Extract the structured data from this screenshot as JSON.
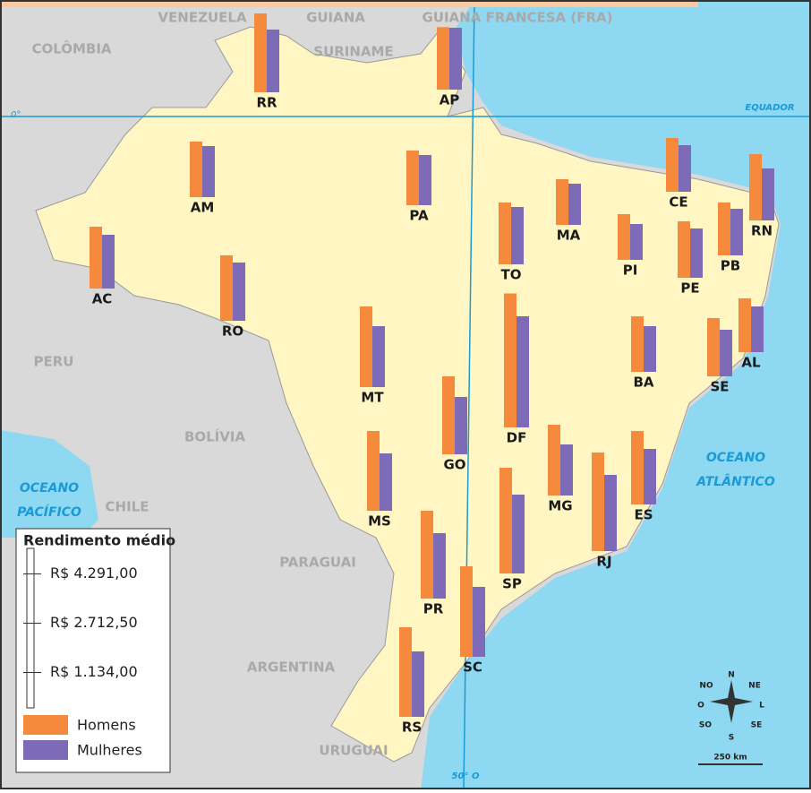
{
  "legend": {
    "title": "Rendimento médio",
    "ticks": [
      {
        "value": 4291,
        "label": "R$ 4.291,00"
      },
      {
        "value": 2712.5,
        "label": "R$ 2.712,50"
      },
      {
        "value": 1134,
        "label": "R$ 1.134,00"
      }
    ],
    "series": [
      {
        "name": "Homens",
        "color": "#f58a3c"
      },
      {
        "name": "Mulheres",
        "color": "#7d6bb8"
      }
    ]
  },
  "states": [
    {
      "label": "RR",
      "values": [
        2526,
        2009
      ]
    },
    {
      "label": "AP",
      "values": [
        2000,
        1980
      ]
    },
    {
      "label": "AM",
      "values": [
        1780,
        1636
      ]
    },
    {
      "label": "PA",
      "values": [
        1750,
        1607
      ]
    },
    {
      "label": "AC",
      "values": [
        1980,
        1722
      ]
    },
    {
      "label": "RO",
      "values": [
        2095,
        1866
      ]
    },
    {
      "label": "TO",
      "values": [
        1980,
        1837
      ]
    },
    {
      "label": "MA",
      "values": [
        1464,
        1320
      ]
    },
    {
      "label": "PI",
      "values": [
        1464,
        1148
      ]
    },
    {
      "label": "CE",
      "values": [
        1722,
        1492
      ]
    },
    {
      "label": "RN",
      "values": [
        2124,
        1665
      ]
    },
    {
      "label": "PB",
      "values": [
        1693,
        1492
      ]
    },
    {
      "label": "PE",
      "values": [
        1808,
        1578
      ]
    },
    {
      "label": "AL",
      "values": [
        1722,
        1464
      ]
    },
    {
      "label": "SE",
      "values": [
        1866,
        1492
      ]
    },
    {
      "label": "BA",
      "values": [
        1779,
        1464
      ]
    },
    {
      "label": "MT",
      "values": [
        2583,
        1952
      ]
    },
    {
      "label": "DF",
      "values": [
        4291,
        3559
      ]
    },
    {
      "label": "GO",
      "values": [
        2497,
        1837
      ]
    },
    {
      "label": "MS",
      "values": [
        2554,
        1837
      ]
    },
    {
      "label": "MG",
      "values": [
        2267,
        1636
      ]
    },
    {
      "label": "ES",
      "values": [
        2353,
        1779
      ]
    },
    {
      "label": "RJ",
      "values": [
        3157,
        2440
      ]
    },
    {
      "label": "SP",
      "values": [
        3387,
        2526
      ]
    },
    {
      "label": "PR",
      "values": [
        2813,
        2095
      ]
    },
    {
      "label": "SC",
      "values": [
        2899,
        2239
      ]
    },
    {
      "label": "RS",
      "values": [
        2870,
        2095
      ]
    }
  ],
  "countries": [
    "VENEZUELA",
    "GUIANA",
    "SURINAME",
    "GUIANA FRANCESA (FRA)",
    "COLÔMBIA",
    "PERU",
    "BOLÍVIA",
    "CHILE",
    "PARAGUAI",
    "ARGENTINA",
    "URUGUAI"
  ],
  "oceans": [
    "OCEANO",
    "PACÍFICO",
    "OCEANO",
    "ATLÂNTICO"
  ],
  "lines": {
    "equator": "EQUADOR",
    "equator_degree": "0°",
    "meridian": "50° O"
  },
  "compass": [
    "N",
    "NE",
    "L",
    "SE",
    "S",
    "SO",
    "O",
    "NO"
  ],
  "scale_bar": "250 km"
}
